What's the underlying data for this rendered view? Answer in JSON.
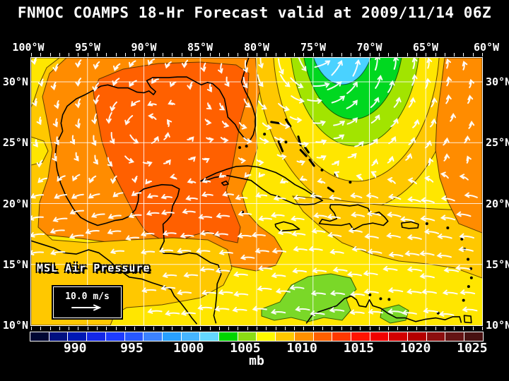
{
  "title": "FNMOC COAMPS 18-Hr Forecast valid at 2009/11/14 06Z",
  "map": {
    "field_label": "MSL Air Pressure",
    "wind_scale_label": "10.0 m/s",
    "lon_labels": [
      "100°W",
      "95°W",
      "90°W",
      "85°W",
      "80°W",
      "75°W",
      "70°W",
      "65°W",
      "60°W"
    ],
    "lat_labels_left": [
      "30°N",
      "25°N",
      "20°N",
      "15°N",
      "10°N"
    ],
    "lat_labels_right": [
      "30°N",
      "25°N",
      "20°N",
      "15°N",
      "10°N"
    ]
  },
  "colorbar": {
    "unit": "mb",
    "tick_labels": [
      "990",
      "995",
      "1000",
      "1005",
      "1010",
      "1015",
      "1020",
      "1025"
    ],
    "cell_colors": [
      "#000733",
      "#001080",
      "#0018b4",
      "#1428e6",
      "#1e3cff",
      "#2858ff",
      "#3c82ff",
      "#28a0ff",
      "#46b4ff",
      "#64d8ff",
      "#00d400",
      "#8cdc14",
      "#fffa00",
      "#ffc800",
      "#ff9000",
      "#ff6000",
      "#ff3900",
      "#ff1400",
      "#f00000",
      "#d20000",
      "#b40000",
      "#8c0f0f",
      "#641414",
      "#471111"
    ]
  },
  "field_colors": {
    "base_yellow": "#ffe600",
    "gold": "#ffc800",
    "orange": "#ff8c00",
    "deep_orange": "#ff6000",
    "yellow_green": "#a2e400",
    "green": "#00d820",
    "cyan": "#4ad2ff",
    "low_green_patch": "#7ad828",
    "wind_arrow": "#ffffff",
    "coastline": "#000000",
    "graticule": "#ffffff"
  }
}
